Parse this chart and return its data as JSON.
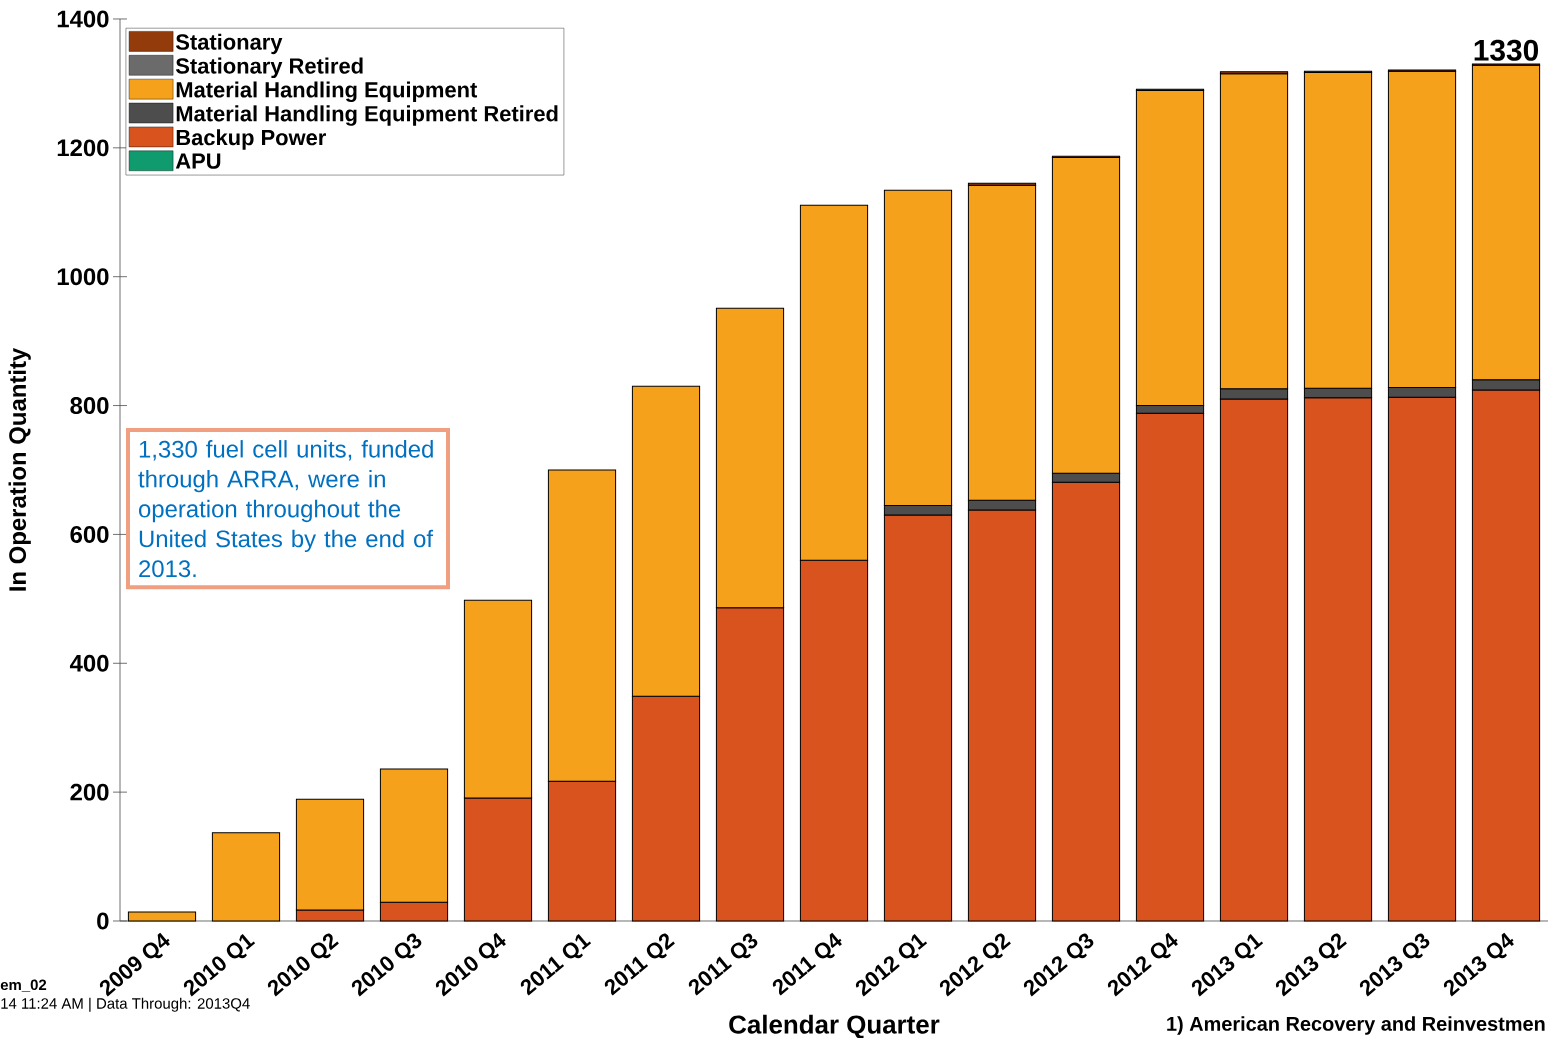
{
  "chart_data": {
    "type": "bar",
    "stacked": true,
    "categories": [
      "2009 Q4",
      "2010 Q1",
      "2010 Q2",
      "2010 Q3",
      "2010 Q4",
      "2011 Q1",
      "2011 Q2",
      "2011 Q3",
      "2011 Q4",
      "2012 Q1",
      "2012 Q2",
      "2012 Q3",
      "2012 Q4",
      "2013 Q1",
      "2013 Q2",
      "2013 Q3",
      "2013 Q4"
    ],
    "series": [
      {
        "name": "APU",
        "color": "#0f9b6e",
        "values": [
          0,
          0,
          0,
          0,
          0,
          0,
          0,
          0,
          0,
          0,
          0,
          0,
          0,
          0,
          0,
          0,
          0
        ]
      },
      {
        "name": "Backup Power",
        "color": "#d9531e",
        "values": [
          0,
          0,
          17,
          29,
          191,
          217,
          349,
          486,
          560,
          630,
          638,
          681,
          788,
          810,
          812,
          813,
          824
        ]
      },
      {
        "name": "Material Handling Equipment Retired",
        "color": "#4d4d4d",
        "values": [
          0,
          0,
          0,
          0,
          0,
          0,
          0,
          0,
          0,
          15,
          15,
          14,
          12,
          16,
          15,
          15,
          16
        ]
      },
      {
        "name": "Material Handling Equipment",
        "color": "#f5a11c",
        "values": [
          14,
          137,
          172,
          207,
          307,
          483,
          481,
          465,
          551,
          489,
          489,
          490,
          489,
          489,
          490,
          491,
          488
        ]
      },
      {
        "name": "Stationary Retired",
        "color": "#6b6b6b",
        "values": [
          0,
          0,
          0,
          0,
          0,
          0,
          0,
          0,
          0,
          0,
          0,
          0,
          0,
          0,
          0,
          0,
          0
        ]
      },
      {
        "name": "Stationary",
        "color": "#943b0c",
        "values": [
          0,
          0,
          0,
          0,
          0,
          0,
          0,
          0,
          0,
          0,
          3,
          2,
          2,
          3,
          2,
          2,
          2
        ]
      }
    ],
    "totals": [
      null,
      null,
      null,
      null,
      null,
      null,
      null,
      null,
      null,
      null,
      null,
      null,
      null,
      null,
      null,
      null,
      "1330"
    ],
    "ylim": [
      0,
      1400
    ],
    "yticks": [
      0,
      200,
      400,
      600,
      800,
      1000,
      1200,
      1400
    ],
    "ylabel": "In Operation Quantity",
    "xlabel": "Calendar Quarter",
    "legend": "top left",
    "annotations": [
      "1,330 fuel cell units, funded through ARRA, were in operation throughout the United States by the end of 2013.",
      "em_02",
      "14 11:24 AM | Data Through: 2013Q4",
      "1) American Recovery and Reinvestmen"
    ]
  }
}
